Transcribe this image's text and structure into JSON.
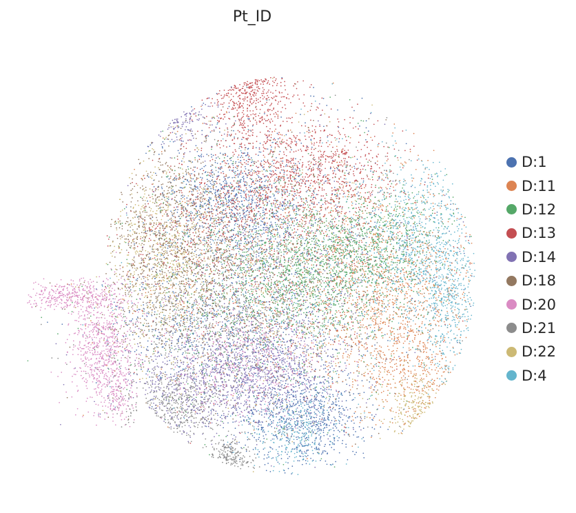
{
  "chart_data": {
    "type": "scatter",
    "title": "Pt_ID",
    "xlabel": "",
    "ylabel": "",
    "axes_visible": false,
    "grid": false,
    "legend_placement": "right",
    "point_size": "tiny",
    "series": [
      {
        "name": "D:1",
        "color": "#4c72b0",
        "region": "scattered across the embedding; concentrated in the bottom-center lobe and upper-left area"
      },
      {
        "name": "D:11",
        "color": "#dd8452",
        "region": "right side of the embedding"
      },
      {
        "name": "D:12",
        "color": "#55a868",
        "region": "central and center-right area"
      },
      {
        "name": "D:13",
        "color": "#c44e52",
        "region": "top protrusion and upper-center area"
      },
      {
        "name": "D:14",
        "color": "#8172b3",
        "region": "lower-center band and top-left protrusion"
      },
      {
        "name": "D:18",
        "color": "#937860",
        "region": "left side of the embedding"
      },
      {
        "name": "D:20",
        "color": "#da8bc3",
        "region": "left-side arm and lower-left area"
      },
      {
        "name": "D:21",
        "color": "#8c8c8c",
        "region": "bottom-left and bottom lobe"
      },
      {
        "name": "D:22",
        "color": "#ccb974",
        "region": "left side and lower-right edge"
      },
      {
        "name": "D:4",
        "color": "#64b5cd",
        "region": "right edge of the embedding"
      }
    ]
  }
}
